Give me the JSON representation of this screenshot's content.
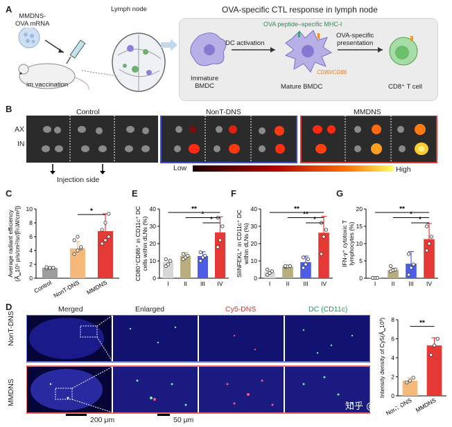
{
  "panel_a": {
    "label": "A",
    "mrna_label_1": "MMDNS-",
    "mrna_label_2": "OVA mRNA",
    "vaccination": "im vaccination",
    "lymph_node": "Lymph node",
    "box_title": "OVA-specific CTL response in lymph node",
    "mhc": "OVA peptide–specific MHC-I",
    "dc_activation": "DC activation",
    "presentation_1": "OVA-specific",
    "presentation_2": "presentation",
    "immature_1": "Immature",
    "immature_2": "BMDC",
    "cd80": "CD80/CD86",
    "mature": "Mature BMDC",
    "tcell": "CD8⁺ T cell"
  },
  "panel_b": {
    "label": "B",
    "groups": [
      "Control",
      "NonT-DNS",
      "MMDNS"
    ],
    "rows": [
      "AX",
      "IN"
    ],
    "scale_low": "Low",
    "scale_high": "High",
    "injection": "Injection side"
  },
  "panel_c": {
    "label": "C",
    "ylabel_1": "Average radiant efficiency",
    "ylabel_2": "(Ã‗10⁵ p/s/cm²/sr/[Î¼W/cm²])",
    "sig": [
      "*"
    ]
  },
  "panel_e": {
    "label": "E",
    "ylabel_1": "CD80⁺CD86⁺ in CD11c⁺ DC",
    "ylabel_2": "cells within dLNs (%)",
    "sig": [
      "**",
      "*",
      "*"
    ]
  },
  "panel_f": {
    "label": "F",
    "ylabel_1": "SIINFEKL⁺ in CD11c⁺ DC",
    "ylabel_2": "within dLNs (%)",
    "sig": [
      "**",
      "**",
      "*"
    ]
  },
  "panel_g": {
    "label": "G",
    "ylabel_1": "IFN-γ⁺ cytotoxic T",
    "ylabel_2": "lymphocytes (%)",
    "sig": [
      "**",
      "*",
      "*"
    ]
  },
  "panel_d": {
    "label": "D",
    "col_titles": [
      "Merged",
      "Enlarged",
      "Cy5-DNS",
      "DC (CD11c)"
    ],
    "col_colors": [
      "#222222",
      "#222222",
      "#d32f2f",
      "#1a9e5a"
    ],
    "rows": [
      "NonT-DNS",
      "MMDNS"
    ],
    "scale1": "200 μm",
    "scale2": "50 μm",
    "ylabel": "Intensity density of Cy5(Ã‗10³)",
    "sig": [
      "**"
    ],
    "watermark": "知乎 @amtacy"
  },
  "chart_data": [
    {
      "type": "bar",
      "panel": "C",
      "categories": [
        "Control",
        "NonT-DNS",
        "MMDNS"
      ],
      "values": [
        1.5,
        4.3,
        6.8
      ],
      "errors": [
        0.1,
        1.0,
        2.5
      ],
      "points": [
        [
          1.4,
          1.5,
          1.5,
          1.6,
          1.5,
          1.5
        ],
        [
          3.5,
          4.0,
          4.3,
          5.5,
          6.0,
          4.5
        ],
        [
          5.0,
          5.5,
          6.0,
          7.0,
          8.0,
          9.3
        ]
      ],
      "colors": [
        "#9e9e9e",
        "#f7b97a",
        "#e53935"
      ],
      "ylim": [
        0,
        10
      ],
      "yticks": [
        0,
        2,
        4,
        6,
        8,
        10
      ]
    },
    {
      "type": "bar",
      "panel": "E",
      "categories": [
        "I",
        "II",
        "III",
        "IV"
      ],
      "values": [
        9.5,
        12.8,
        12.8,
        26.5
      ],
      "errors": [
        1.5,
        2.0,
        2.5,
        9.0
      ],
      "points": [
        [
          7,
          8,
          10,
          11
        ],
        [
          11,
          12,
          13,
          14
        ],
        [
          10,
          12,
          13,
          15
        ],
        [
          18,
          22,
          30,
          35
        ]
      ],
      "colors": [
        "#d7d7d7",
        "#b8ad7c",
        "#4d5de8",
        "#e53935"
      ],
      "ylim": [
        0,
        40
      ],
      "yticks": [
        0,
        10,
        20,
        30,
        40
      ]
    },
    {
      "type": "bar",
      "panel": "F",
      "categories": [
        "I",
        "II",
        "III",
        "IV"
      ],
      "values": [
        3.5,
        6.8,
        9.3,
        26.3
      ],
      "errors": [
        1.5,
        0.5,
        3.5,
        9.5
      ],
      "points": [
        [
          2,
          3,
          4,
          5
        ],
        [
          6.5,
          6.8,
          7,
          7
        ],
        [
          6,
          8,
          11,
          12
        ],
        [
          14,
          24,
          28,
          32
        ]
      ],
      "colors": [
        "#d7d7d7",
        "#b8ad7c",
        "#4d5de8",
        "#e53935"
      ],
      "ylim": [
        0,
        40
      ],
      "yticks": [
        0,
        10,
        20,
        30,
        40
      ]
    },
    {
      "type": "bar",
      "panel": "G",
      "categories": [
        "I",
        "II",
        "III",
        "IV"
      ],
      "values": [
        0.1,
        2.3,
        4.2,
        11.3
      ],
      "errors": [
        0.05,
        0.6,
        3.5,
        4.5
      ],
      "points": [
        [
          0.1,
          0.1,
          0.1,
          0.1
        ],
        [
          2,
          2.3,
          2.5,
          3.5
        ],
        [
          1,
          3,
          4,
          7
        ],
        [
          8,
          10,
          12,
          15
        ]
      ],
      "colors": [
        "#d7d7d7",
        "#b8ad7c",
        "#4d5de8",
        "#e53935"
      ],
      "ylim": [
        0,
        20
      ],
      "yticks": [
        0,
        5,
        10,
        15,
        20
      ]
    },
    {
      "type": "bar",
      "panel": "D",
      "categories": [
        "NonT-DNS",
        "MMDNS"
      ],
      "values": [
        1.6,
        5.3
      ],
      "errors": [
        0.3,
        0.8
      ],
      "points": [
        [
          1.4,
          1.6,
          1.9
        ],
        [
          4.3,
          5.3,
          6.0
        ]
      ],
      "colors": [
        "#f7b97a",
        "#e53935"
      ],
      "ylim": [
        0,
        8
      ],
      "yticks": [
        0,
        2,
        4,
        6,
        8
      ]
    }
  ]
}
